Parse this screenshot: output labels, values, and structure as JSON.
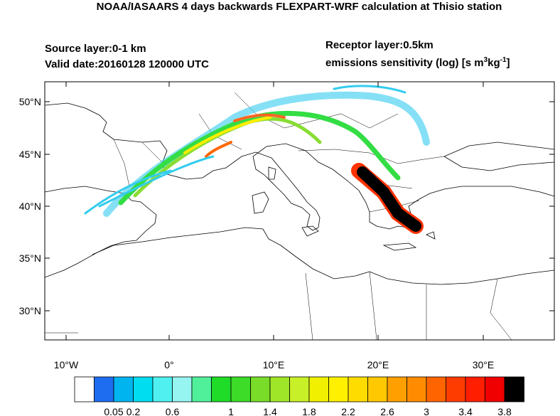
{
  "header": {
    "title": "NOAA/IASAARS 4 days backwards FLEXPART-WRF calculation at Thisio station",
    "source_layer": "Source layer:0-1 km",
    "valid_date": "Valid date:20160128 120000 UTC",
    "receptor_layer": "Receptor layer:0.5km",
    "units_label": [
      "emissions sensitivity (log) [s m",
      "3",
      "kg",
      "-1",
      "]"
    ]
  },
  "map": {
    "lat_labels": [
      "50°N",
      "45°N",
      "40°N",
      "35°N",
      "30°N"
    ],
    "lon_labels": [
      "10°W",
      "0°",
      "10°E",
      "20°E",
      "30°E"
    ]
  },
  "colorbar": {
    "labels": [
      "0.05",
      "0.2",
      "0.6",
      "1",
      "1.4",
      "1.8",
      "2.2",
      "2.6",
      "3",
      "3.4",
      "3.8"
    ]
  }
}
